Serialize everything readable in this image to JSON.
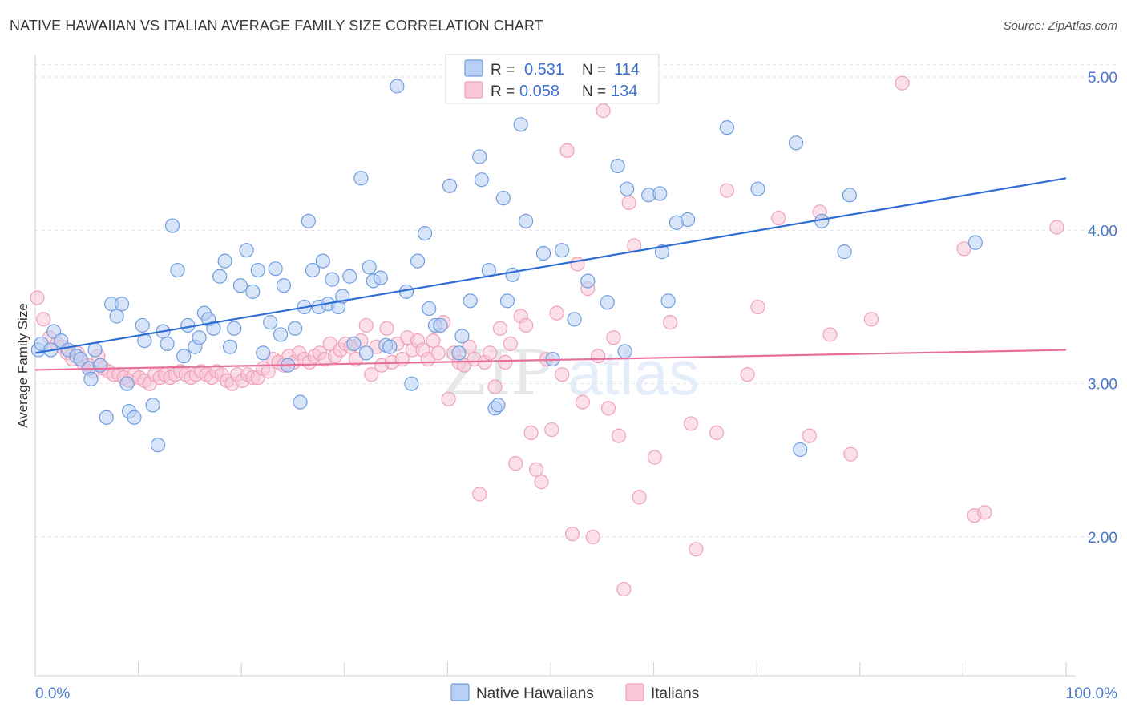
{
  "header": {
    "title": "NATIVE HAWAIIAN VS ITALIAN AVERAGE FAMILY SIZE CORRELATION CHART",
    "source": "Source: ZipAtlas.com"
  },
  "watermark": {
    "zip": "ZIP",
    "atlas": "atlas"
  },
  "legend": {
    "r_label": "R =",
    "n_label": "N =",
    "series": [
      {
        "r": "0.531",
        "n": "114",
        "color": "#6f9de0"
      },
      {
        "r": "0.058",
        "n": "134",
        "color": "#f0a0bc"
      }
    ]
  },
  "bottom_legend": [
    "Native Hawaiians",
    "Italians"
  ],
  "chart_data": {
    "type": "scatter",
    "title": "NATIVE HAWAIIAN VS ITALIAN AVERAGE FAMILY SIZE CORRELATION CHART",
    "xlabel": "",
    "ylabel": "Average Family Size",
    "xlim": [
      0,
      100
    ],
    "ylim": [
      1.1,
      5.1
    ],
    "x_tick_labels": [
      "0.0%",
      "100.0%"
    ],
    "y_ticks": [
      2.0,
      3.0,
      4.0,
      5.0
    ],
    "y_tick_labels": [
      "2.00",
      "3.00",
      "4.00",
      "5.00"
    ],
    "grid": true,
    "series": [
      {
        "name": "Native Hawaiians",
        "color": "#6f9de0",
        "trend": [
          [
            0,
            3.2
          ],
          [
            100,
            4.34
          ]
        ],
        "points": [
          [
            0.3,
            3.22
          ],
          [
            0.6,
            3.26
          ],
          [
            1.5,
            3.22
          ],
          [
            1.8,
            3.34
          ],
          [
            2.5,
            3.28
          ],
          [
            3.2,
            3.22
          ],
          [
            4,
            3.18
          ],
          [
            4.4,
            3.16
          ],
          [
            5.2,
            3.1
          ],
          [
            5.4,
            3.03
          ],
          [
            5.8,
            3.22
          ],
          [
            6.3,
            3.12
          ],
          [
            6.9,
            2.78
          ],
          [
            7.4,
            3.52
          ],
          [
            7.9,
            3.44
          ],
          [
            8.4,
            3.52
          ],
          [
            8.9,
            3.0
          ],
          [
            9.1,
            2.82
          ],
          [
            9.6,
            2.78
          ],
          [
            10.4,
            3.38
          ],
          [
            10.6,
            3.28
          ],
          [
            11.4,
            2.86
          ],
          [
            11.9,
            2.6
          ],
          [
            12.4,
            3.34
          ],
          [
            12.8,
            3.26
          ],
          [
            13.3,
            4.03
          ],
          [
            13.8,
            3.74
          ],
          [
            14.4,
            3.18
          ],
          [
            14.8,
            3.38
          ],
          [
            15.5,
            3.24
          ],
          [
            15.9,
            3.3
          ],
          [
            16.4,
            3.46
          ],
          [
            16.8,
            3.42
          ],
          [
            17.3,
            3.36
          ],
          [
            17.9,
            3.7
          ],
          [
            18.4,
            3.8
          ],
          [
            18.9,
            3.24
          ],
          [
            19.3,
            3.36
          ],
          [
            19.9,
            3.64
          ],
          [
            20.5,
            3.87
          ],
          [
            21.1,
            3.6
          ],
          [
            21.6,
            3.74
          ],
          [
            22.1,
            3.2
          ],
          [
            22.8,
            3.4
          ],
          [
            23.3,
            3.75
          ],
          [
            23.8,
            3.32
          ],
          [
            24.1,
            3.64
          ],
          [
            24.5,
            3.12
          ],
          [
            25.2,
            3.36
          ],
          [
            25.7,
            2.88
          ],
          [
            26.1,
            3.5
          ],
          [
            26.5,
            4.06
          ],
          [
            26.9,
            3.74
          ],
          [
            27.5,
            3.5
          ],
          [
            27.9,
            3.8
          ],
          [
            28.4,
            3.52
          ],
          [
            28.8,
            3.68
          ],
          [
            29.4,
            3.5
          ],
          [
            29.8,
            3.57
          ],
          [
            30.5,
            3.7
          ],
          [
            30.9,
            3.26
          ],
          [
            31.6,
            4.34
          ],
          [
            32.1,
            3.2
          ],
          [
            32.4,
            3.76
          ],
          [
            32.8,
            3.67
          ],
          [
            33.5,
            3.69
          ],
          [
            34,
            3.25
          ],
          [
            34.4,
            3.24
          ],
          [
            35.1,
            4.94
          ],
          [
            36,
            3.6
          ],
          [
            36.5,
            3.0
          ],
          [
            37.1,
            3.8
          ],
          [
            37.8,
            3.98
          ],
          [
            38.2,
            3.49
          ],
          [
            38.8,
            3.38
          ],
          [
            39.3,
            3.38
          ],
          [
            40.2,
            4.29
          ],
          [
            41.1,
            3.2
          ],
          [
            41.4,
            3.31
          ],
          [
            42.2,
            3.54
          ],
          [
            43.1,
            4.48
          ],
          [
            43.3,
            4.33
          ],
          [
            44,
            3.74
          ],
          [
            44.6,
            2.84
          ],
          [
            44.9,
            2.86
          ],
          [
            45.4,
            4.21
          ],
          [
            45.8,
            3.54
          ],
          [
            46.3,
            3.71
          ],
          [
            47.1,
            4.69
          ],
          [
            47.6,
            4.06
          ],
          [
            49.3,
            3.85
          ],
          [
            50.2,
            3.16
          ],
          [
            51.1,
            3.87
          ],
          [
            52.3,
            3.42
          ],
          [
            53.6,
            3.67
          ],
          [
            55.5,
            3.53
          ],
          [
            56.5,
            4.42
          ],
          [
            57.2,
            3.21
          ],
          [
            57.4,
            4.27
          ],
          [
            59.5,
            4.23
          ],
          [
            60.6,
            4.24
          ],
          [
            60.8,
            3.86
          ],
          [
            61.4,
            3.54
          ],
          [
            62.2,
            4.05
          ],
          [
            63.3,
            4.07
          ],
          [
            67.1,
            4.67
          ],
          [
            70.1,
            4.27
          ],
          [
            73.8,
            4.57
          ],
          [
            74.2,
            2.57
          ],
          [
            76.3,
            4.06
          ],
          [
            78.5,
            3.86
          ],
          [
            79,
            4.23
          ],
          [
            91.2,
            3.92
          ]
        ]
      },
      {
        "name": "Italians",
        "color": "#f0a0bc",
        "trend": [
          [
            0,
            3.09
          ],
          [
            100,
            3.22
          ]
        ],
        "points": [
          [
            0.2,
            3.56
          ],
          [
            0.8,
            3.42
          ],
          [
            1.4,
            3.3
          ],
          [
            2.1,
            3.26
          ],
          [
            2.6,
            3.24
          ],
          [
            3.1,
            3.2
          ],
          [
            3.6,
            3.16
          ],
          [
            4.1,
            3.2
          ],
          [
            4.6,
            3.14
          ],
          [
            5.1,
            3.12
          ],
          [
            5.6,
            3.08
          ],
          [
            6.1,
            3.18
          ],
          [
            6.6,
            3.1
          ],
          [
            7.1,
            3.08
          ],
          [
            7.6,
            3.06
          ],
          [
            8.1,
            3.06
          ],
          [
            8.6,
            3.04
          ],
          [
            9.1,
            3.02
          ],
          [
            9.6,
            3.06
          ],
          [
            10.1,
            3.04
          ],
          [
            10.6,
            3.02
          ],
          [
            11.1,
            3.0
          ],
          [
            11.6,
            3.06
          ],
          [
            12.1,
            3.04
          ],
          [
            12.6,
            3.06
          ],
          [
            13.1,
            3.04
          ],
          [
            13.6,
            3.06
          ],
          [
            14.1,
            3.08
          ],
          [
            14.6,
            3.06
          ],
          [
            15.1,
            3.04
          ],
          [
            15.6,
            3.06
          ],
          [
            16.1,
            3.08
          ],
          [
            16.6,
            3.06
          ],
          [
            17.1,
            3.04
          ],
          [
            17.6,
            3.08
          ],
          [
            18.1,
            3.06
          ],
          [
            18.6,
            3.02
          ],
          [
            19.1,
            3.0
          ],
          [
            19.6,
            3.06
          ],
          [
            20.1,
            3.02
          ],
          [
            20.6,
            3.06
          ],
          [
            21.1,
            3.04
          ],
          [
            21.6,
            3.04
          ],
          [
            22.1,
            3.1
          ],
          [
            22.6,
            3.08
          ],
          [
            23.1,
            3.16
          ],
          [
            23.6,
            3.14
          ],
          [
            24.1,
            3.12
          ],
          [
            24.6,
            3.18
          ],
          [
            25.1,
            3.14
          ],
          [
            25.6,
            3.2
          ],
          [
            26.1,
            3.16
          ],
          [
            26.6,
            3.14
          ],
          [
            27.1,
            3.18
          ],
          [
            27.6,
            3.2
          ],
          [
            28.1,
            3.16
          ],
          [
            28.6,
            3.26
          ],
          [
            29.1,
            3.18
          ],
          [
            29.6,
            3.22
          ],
          [
            30.1,
            3.26
          ],
          [
            30.6,
            3.24
          ],
          [
            31.1,
            3.16
          ],
          [
            31.6,
            3.28
          ],
          [
            32.1,
            3.38
          ],
          [
            32.6,
            3.06
          ],
          [
            33.1,
            3.24
          ],
          [
            33.6,
            3.12
          ],
          [
            34.1,
            3.36
          ],
          [
            34.6,
            3.14
          ],
          [
            35.1,
            3.26
          ],
          [
            35.6,
            3.16
          ],
          [
            36.1,
            3.3
          ],
          [
            36.6,
            3.22
          ],
          [
            37.1,
            3.28
          ],
          [
            37.6,
            3.22
          ],
          [
            38.1,
            3.16
          ],
          [
            38.6,
            3.28
          ],
          [
            39.1,
            3.2
          ],
          [
            39.6,
            3.4
          ],
          [
            40.1,
            2.9
          ],
          [
            40.6,
            3.2
          ],
          [
            41.1,
            3.14
          ],
          [
            41.6,
            3.12
          ],
          [
            42.1,
            3.24
          ],
          [
            42.6,
            3.16
          ],
          [
            43.1,
            2.28
          ],
          [
            43.6,
            3.14
          ],
          [
            44.1,
            3.2
          ],
          [
            44.6,
            2.98
          ],
          [
            45.1,
            3.36
          ],
          [
            45.6,
            3.14
          ],
          [
            46.1,
            3.26
          ],
          [
            46.6,
            2.48
          ],
          [
            47.1,
            3.44
          ],
          [
            47.6,
            3.38
          ],
          [
            48.1,
            2.68
          ],
          [
            48.6,
            2.44
          ],
          [
            49.1,
            2.36
          ],
          [
            49.6,
            3.16
          ],
          [
            50.1,
            2.7
          ],
          [
            50.6,
            3.46
          ],
          [
            51.1,
            3.06
          ],
          [
            51.6,
            4.52
          ],
          [
            52.1,
            2.02
          ],
          [
            52.6,
            3.78
          ],
          [
            53.1,
            2.88
          ],
          [
            53.6,
            3.62
          ],
          [
            54.1,
            2.0
          ],
          [
            54.6,
            3.18
          ],
          [
            55.1,
            4.78
          ],
          [
            55.6,
            2.84
          ],
          [
            56.1,
            3.3
          ],
          [
            56.6,
            2.66
          ],
          [
            57.1,
            1.66
          ],
          [
            57.6,
            4.18
          ],
          [
            58.1,
            3.9
          ],
          [
            58.6,
            2.26
          ],
          [
            60.1,
            2.52
          ],
          [
            61.6,
            3.4
          ],
          [
            63.6,
            2.74
          ],
          [
            64.1,
            1.92
          ],
          [
            66.1,
            2.68
          ],
          [
            67.1,
            4.26
          ],
          [
            69.1,
            3.06
          ],
          [
            70.1,
            3.5
          ],
          [
            72.1,
            4.08
          ],
          [
            75.1,
            2.66
          ],
          [
            76.1,
            4.12
          ],
          [
            77.1,
            3.32
          ],
          [
            79.1,
            2.54
          ],
          [
            81.1,
            3.42
          ],
          [
            84.1,
            4.96
          ],
          [
            90.1,
            3.88
          ],
          [
            91.1,
            2.14
          ],
          [
            92.1,
            2.16
          ],
          [
            99.1,
            4.02
          ]
        ]
      }
    ]
  }
}
